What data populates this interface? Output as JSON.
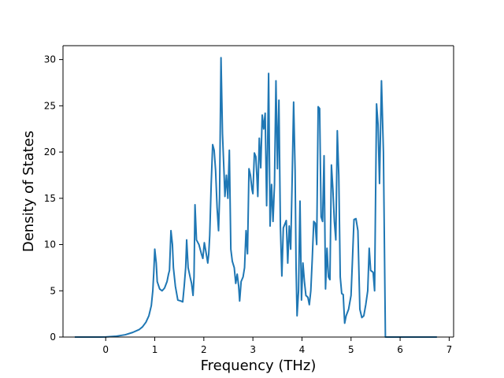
{
  "chart_data": {
    "type": "line",
    "title": "",
    "xlabel": "Frequency (THz)",
    "ylabel": "Density of States",
    "xlim": [
      -0.87,
      7.09
    ],
    "ylim": [
      0,
      31.5
    ],
    "xticks": [
      0,
      1,
      2,
      3,
      4,
      5,
      6,
      7
    ],
    "yticks": [
      0,
      5,
      10,
      15,
      20,
      25,
      30
    ],
    "grid": false,
    "legend": "none",
    "series": [
      {
        "color": "#1f77b4",
        "points": [
          [
            -0.63,
            0
          ],
          [
            -0.2,
            0
          ],
          [
            0.0,
            0.01
          ],
          [
            0.2,
            0.08
          ],
          [
            0.4,
            0.25
          ],
          [
            0.55,
            0.5
          ],
          [
            0.68,
            0.8
          ],
          [
            0.75,
            1.1
          ],
          [
            0.82,
            1.6
          ],
          [
            0.88,
            2.3
          ],
          [
            0.93,
            3.4
          ],
          [
            0.96,
            5.0
          ],
          [
            0.98,
            7.0
          ],
          [
            1.0,
            9.5
          ],
          [
            1.03,
            8.0
          ],
          [
            1.05,
            6.0
          ],
          [
            1.1,
            5.2
          ],
          [
            1.15,
            5.0
          ],
          [
            1.2,
            5.3
          ],
          [
            1.25,
            6.0
          ],
          [
            1.28,
            6.8
          ],
          [
            1.3,
            7.2
          ],
          [
            1.33,
            11.5
          ],
          [
            1.36,
            10.0
          ],
          [
            1.38,
            7.5
          ],
          [
            1.42,
            5.5
          ],
          [
            1.47,
            4.0
          ],
          [
            1.53,
            3.9
          ],
          [
            1.57,
            3.8
          ],
          [
            1.6,
            5.5
          ],
          [
            1.63,
            7.5
          ],
          [
            1.65,
            10.5
          ],
          [
            1.68,
            7.5
          ],
          [
            1.72,
            6.5
          ],
          [
            1.75,
            5.8
          ],
          [
            1.78,
            4.5
          ],
          [
            1.8,
            6.5
          ],
          [
            1.82,
            14.3
          ],
          [
            1.85,
            10.5
          ],
          [
            1.9,
            10.0
          ],
          [
            1.95,
            9.0
          ],
          [
            1.98,
            8.5
          ],
          [
            2.01,
            10.2
          ],
          [
            2.05,
            9.0
          ],
          [
            2.08,
            8.0
          ],
          [
            2.1,
            9.0
          ],
          [
            2.12,
            11.0
          ],
          [
            2.15,
            16.5
          ],
          [
            2.18,
            20.8
          ],
          [
            2.21,
            20.2
          ],
          [
            2.24,
            18.0
          ],
          [
            2.27,
            14.0
          ],
          [
            2.3,
            11.5
          ],
          [
            2.32,
            15.0
          ],
          [
            2.35,
            30.2
          ],
          [
            2.38,
            22.0
          ],
          [
            2.41,
            18.0
          ],
          [
            2.43,
            15.2
          ],
          [
            2.46,
            17.5
          ],
          [
            2.49,
            15.0
          ],
          [
            2.52,
            20.2
          ],
          [
            2.55,
            9.5
          ],
          [
            2.58,
            8.2
          ],
          [
            2.62,
            7.5
          ],
          [
            2.65,
            5.8
          ],
          [
            2.68,
            6.8
          ],
          [
            2.71,
            5.5
          ],
          [
            2.73,
            3.9
          ],
          [
            2.76,
            6.0
          ],
          [
            2.8,
            6.5
          ],
          [
            2.83,
            7.5
          ],
          [
            2.86,
            11.5
          ],
          [
            2.89,
            9.0
          ],
          [
            2.92,
            18.2
          ],
          [
            2.95,
            17.5
          ],
          [
            2.98,
            16.0
          ],
          [
            3.0,
            15.5
          ],
          [
            3.03,
            19.9
          ],
          [
            3.06,
            19.5
          ],
          [
            3.08,
            17.5
          ],
          [
            3.1,
            15.2
          ],
          [
            3.13,
            21.5
          ],
          [
            3.16,
            18.3
          ],
          [
            3.19,
            24.0
          ],
          [
            3.22,
            22.5
          ],
          [
            3.25,
            24.2
          ],
          [
            3.28,
            14.2
          ],
          [
            3.3,
            20.5
          ],
          [
            3.32,
            28.5
          ],
          [
            3.35,
            12.0
          ],
          [
            3.38,
            16.5
          ],
          [
            3.41,
            12.5
          ],
          [
            3.44,
            16.5
          ],
          [
            3.47,
            27.7
          ],
          [
            3.5,
            18.2
          ],
          [
            3.53,
            25.6
          ],
          [
            3.56,
            12.0
          ],
          [
            3.59,
            6.6
          ],
          [
            3.62,
            11.8
          ],
          [
            3.65,
            12.2
          ],
          [
            3.68,
            12.6
          ],
          [
            3.71,
            8.0
          ],
          [
            3.74,
            12.0
          ],
          [
            3.77,
            9.5
          ],
          [
            3.8,
            17.0
          ],
          [
            3.83,
            25.4
          ],
          [
            3.86,
            18.0
          ],
          [
            3.88,
            7.5
          ],
          [
            3.9,
            2.3
          ],
          [
            3.93,
            5.0
          ],
          [
            3.96,
            14.7
          ],
          [
            3.99,
            4.0
          ],
          [
            4.02,
            8.0
          ],
          [
            4.05,
            6.0
          ],
          [
            4.08,
            4.5
          ],
          [
            4.12,
            4.3
          ],
          [
            4.15,
            3.5
          ],
          [
            4.18,
            5.0
          ],
          [
            4.21,
            8.5
          ],
          [
            4.24,
            12.5
          ],
          [
            4.27,
            12.3
          ],
          [
            4.3,
            10.0
          ],
          [
            4.33,
            24.9
          ],
          [
            4.36,
            24.7
          ],
          [
            4.39,
            13.0
          ],
          [
            4.42,
            12.5
          ],
          [
            4.45,
            19.6
          ],
          [
            4.48,
            5.2
          ],
          [
            4.51,
            9.6
          ],
          [
            4.54,
            6.5
          ],
          [
            4.57,
            6.2
          ],
          [
            4.6,
            18.6
          ],
          [
            4.63,
            16.0
          ],
          [
            4.66,
            12.5
          ],
          [
            4.69,
            10.5
          ],
          [
            4.72,
            22.3
          ],
          [
            4.75,
            17.5
          ],
          [
            4.78,
            6.5
          ],
          [
            4.81,
            4.7
          ],
          [
            4.84,
            4.6
          ],
          [
            4.87,
            1.5
          ],
          [
            4.9,
            2.3
          ],
          [
            4.95,
            3.0
          ],
          [
            5.0,
            4.5
          ],
          [
            5.03,
            8.5
          ],
          [
            5.06,
            12.7
          ],
          [
            5.1,
            12.8
          ],
          [
            5.14,
            11.5
          ],
          [
            5.18,
            3.0
          ],
          [
            5.22,
            2.1
          ],
          [
            5.26,
            2.3
          ],
          [
            5.3,
            3.5
          ],
          [
            5.34,
            5.0
          ],
          [
            5.37,
            9.6
          ],
          [
            5.4,
            7.2
          ],
          [
            5.45,
            7.0
          ],
          [
            5.48,
            5.0
          ],
          [
            5.52,
            25.2
          ],
          [
            5.55,
            23.0
          ],
          [
            5.58,
            16.6
          ],
          [
            5.62,
            27.7
          ],
          [
            5.66,
            20.0
          ],
          [
            5.7,
            0.0
          ],
          [
            5.8,
            0.0
          ],
          [
            6.0,
            0.0
          ],
          [
            6.2,
            0.0
          ],
          [
            6.75,
            0.0
          ]
        ]
      }
    ]
  }
}
